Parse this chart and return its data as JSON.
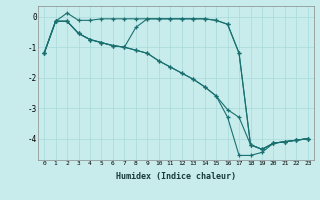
{
  "xlabel": "Humidex (Indice chaleur)",
  "bg_color": "#c8ecec",
  "line_color": "#1a7070",
  "grid_color": "#a8d8d8",
  "xlim": [
    -0.5,
    23.5
  ],
  "ylim": [
    -4.7,
    0.35
  ],
  "xticks": [
    0,
    1,
    2,
    3,
    4,
    5,
    6,
    7,
    8,
    9,
    10,
    11,
    12,
    13,
    14,
    15,
    16,
    17,
    18,
    19,
    20,
    21,
    22,
    23
  ],
  "yticks": [
    0,
    -1,
    -2,
    -3,
    -4
  ],
  "line1_x": [
    0,
    1,
    2,
    3,
    4,
    5,
    6,
    7,
    8,
    9,
    10,
    11,
    12,
    13,
    14,
    15,
    16,
    17,
    18,
    19,
    20,
    21,
    22,
    23
  ],
  "line1_y": [
    -1.2,
    -0.15,
    0.12,
    -0.12,
    -0.12,
    -0.07,
    -0.07,
    -0.07,
    -0.07,
    -0.07,
    -0.07,
    -0.07,
    -0.07,
    -0.07,
    -0.07,
    -0.12,
    -0.25,
    -1.2,
    -4.2,
    -4.35,
    -4.15,
    -4.1,
    -4.05,
    -4.0
  ],
  "line2_x": [
    0,
    1,
    2,
    3,
    4,
    5,
    6,
    7,
    8,
    9,
    10,
    11,
    12,
    13,
    14,
    15,
    16,
    17,
    18,
    19,
    20,
    21,
    22,
    23
  ],
  "line2_y": [
    -1.2,
    -0.15,
    -0.15,
    -0.55,
    -0.75,
    -0.85,
    -0.95,
    -1.0,
    -0.35,
    -0.07,
    -0.07,
    -0.07,
    -0.07,
    -0.07,
    -0.07,
    -0.12,
    -0.25,
    -1.2,
    -4.2,
    -4.35,
    -4.15,
    -4.1,
    -4.05,
    -4.0
  ],
  "line3_x": [
    0,
    1,
    2,
    3,
    4,
    5,
    6,
    7,
    8,
    9,
    10,
    11,
    12,
    13,
    14,
    15,
    16,
    17,
    18,
    19,
    20,
    21,
    22,
    23
  ],
  "line3_y": [
    -1.2,
    -0.15,
    -0.15,
    -0.55,
    -0.75,
    -0.85,
    -0.95,
    -1.0,
    -1.1,
    -1.2,
    -1.45,
    -1.65,
    -1.85,
    -2.05,
    -2.3,
    -2.6,
    -3.05,
    -3.3,
    -4.2,
    -4.35,
    -4.15,
    -4.1,
    -4.05,
    -4.0
  ],
  "line4_x": [
    0,
    1,
    2,
    3,
    4,
    5,
    6,
    7,
    8,
    9,
    10,
    11,
    12,
    13,
    14,
    15,
    16,
    17,
    18,
    19,
    20,
    21,
    22,
    23
  ],
  "line4_y": [
    -1.2,
    -0.15,
    -0.15,
    -0.55,
    -0.75,
    -0.85,
    -0.95,
    -1.0,
    -1.1,
    -1.2,
    -1.45,
    -1.65,
    -1.85,
    -2.05,
    -2.3,
    -2.6,
    -3.3,
    -4.55,
    -4.55,
    -4.45,
    -4.15,
    -4.1,
    -4.05,
    -4.0
  ]
}
